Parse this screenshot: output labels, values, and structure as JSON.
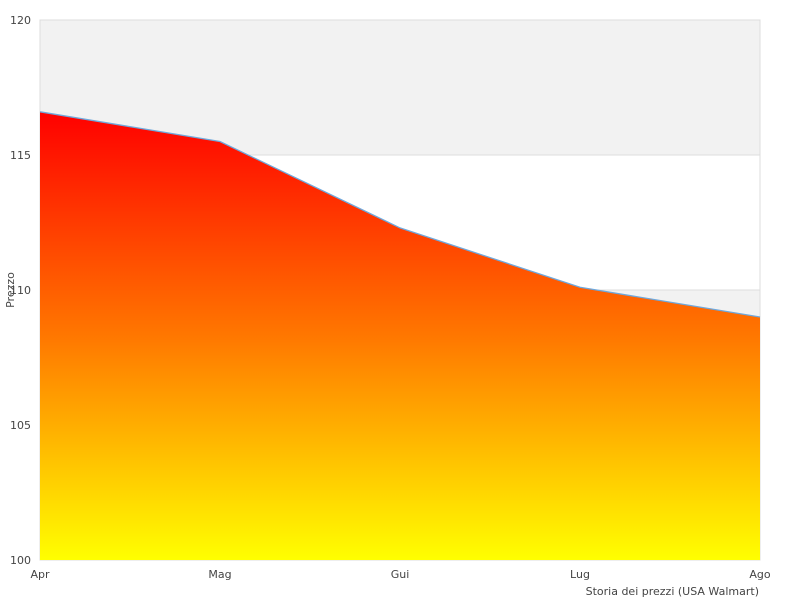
{
  "chart_data": {
    "type": "area",
    "title": "",
    "xlabel": "Storia dei prezzi (USA Walmart)",
    "ylabel": "Prezzo",
    "categories": [
      "Apr",
      "Mag",
      "Gui",
      "Lug",
      "Ago"
    ],
    "series": [
      {
        "values": [
          116.6,
          115.5,
          112.3,
          110.1,
          109.0
        ]
      }
    ],
    "ylim": [
      100,
      120
    ],
    "yticks": [
      100,
      105,
      110,
      115,
      120
    ],
    "grid": true,
    "legend": "none",
    "colors": {
      "fill_top": "#ff0000",
      "fill_mid": "#ff7700",
      "fill_bottom": "#ffff00",
      "line": "#6fa8dc",
      "band": "#f2f2f2",
      "gridline": "#dddddd"
    }
  }
}
